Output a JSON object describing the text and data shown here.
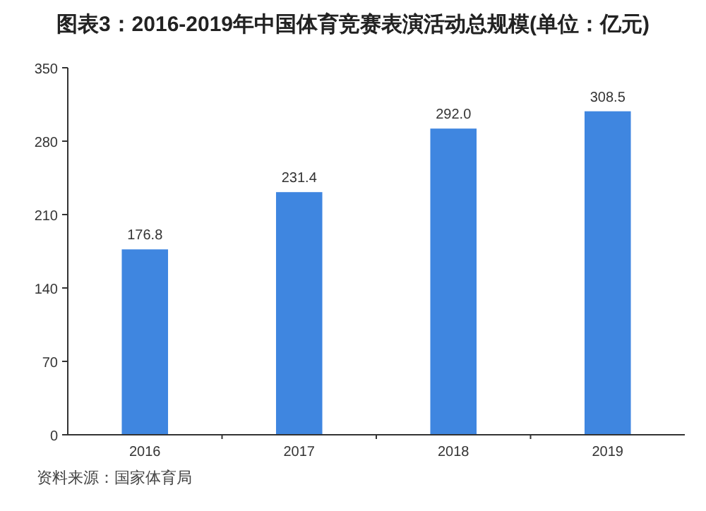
{
  "chart_data": {
    "type": "bar",
    "title": "图表3：2016-2019年中国体育竞赛表演活动总规模(单位：亿元)",
    "categories": [
      "2016",
      "2017",
      "2018",
      "2019"
    ],
    "values": [
      176.8,
      231.4,
      292.0,
      308.5
    ],
    "value_labels": [
      "176.8",
      "231.4",
      "292.0",
      "308.5"
    ],
    "color": "#3f86e0",
    "ylim": [
      0,
      350
    ],
    "yticks": [
      0,
      70,
      140,
      210,
      280,
      350
    ],
    "grid": false,
    "annotations": [
      "资料来源：国家体育局"
    ]
  }
}
